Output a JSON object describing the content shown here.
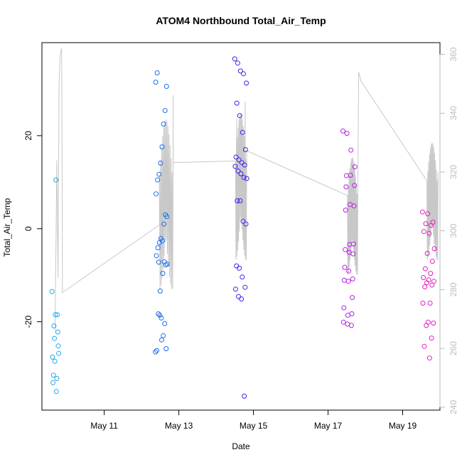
{
  "chart_data": {
    "type": "scatter",
    "title": "ATOM4 Northbound Total_Air_Temp",
    "xlabel": "Date",
    "ylabel": "Total_Air_Temp",
    "x_ticks": [
      "May 11",
      "May 13",
      "May 15",
      "May 17",
      "May 19"
    ],
    "x_tick_days": [
      11,
      13,
      15,
      17,
      19
    ],
    "xlim_days": [
      9.33,
      20.0
    ],
    "y_ticks": [
      -20,
      0,
      20
    ],
    "ylim": [
      -39,
      40
    ],
    "y_right_ticks": [
      240,
      260,
      280,
      300,
      320,
      340,
      360
    ],
    "y_right_lim": [
      239,
      364
    ],
    "colors": {
      "flight1": "#22aaee",
      "flight2": "#1a6fee",
      "flight3": "#3f22ee",
      "flight4": "#b81fe6",
      "flight5": "#e61ec7",
      "line": "#c8c8c8"
    },
    "points": [
      {
        "x": 9.69,
        "ys": [
          -13.5,
          -18.5,
          -26.8,
          -28.5,
          -25.2,
          -23.6,
          -22.2,
          -20.9,
          -18.5,
          -31.5,
          -32.2,
          -33.1,
          -35.0,
          -27.6,
          10.5
        ]
      },
      {
        "x": 12.53,
        "ys": [
          -26.5,
          -26.2,
          -18.3,
          -18.6,
          -19.2,
          -9.6,
          -7.1,
          -7.8,
          -7.6,
          -5.8,
          -4.1,
          -3.0,
          -2.1,
          -2.6,
          1.0,
          3.0,
          2.6,
          7.5,
          10.5,
          11.7,
          14.1,
          17.6,
          22.5,
          25.4,
          30.6,
          31.5,
          33.5,
          -7.2,
          -13.4,
          -23.9,
          -23.0,
          -20.4,
          -25.8
        ]
      },
      {
        "x": 14.66,
        "ys": [
          36.5,
          35.6,
          33.9,
          33.3,
          31.3,
          27.0,
          24.3,
          20.7,
          17.0,
          15.4,
          14.8,
          14.2,
          13.7,
          13.4,
          12.4,
          11.8,
          11.0,
          10.8,
          6.0,
          6.0,
          1.6,
          1.0,
          -8.0,
          -8.5,
          -10.4,
          -12.6,
          -13.0,
          -14.6,
          -15.1,
          -36.0
        ]
      },
      {
        "x": 17.56,
        "ys": [
          21.0,
          20.5,
          16.9,
          13.3,
          11.4,
          11.5,
          9.3,
          9.0,
          5.2,
          4.9,
          4.0,
          -3.4,
          -3.3,
          -4.5,
          -5.1,
          -5.4,
          -8.3,
          -9.1,
          -10.8,
          -11.1,
          -11.3,
          -14.8,
          -17.0,
          -18.6,
          -18.3,
          -20.1,
          -20.5,
          -20.8
        ]
      },
      {
        "x": 19.69,
        "ys": [
          3.6,
          3.2,
          1.4,
          1.1,
          0.7,
          -0.6,
          -1.0,
          -4.3,
          -5.3,
          -7.0,
          -8.6,
          -9.6,
          -10.5,
          -11.0,
          -11.3,
          -11.6,
          -12.1,
          -12.5,
          -16.0,
          -16.0,
          -20.1,
          -20.3,
          -20.8,
          -23.5,
          -25.3,
          -27.8
        ]
      }
    ],
    "line_right_axis": {
      "anchors": [
        [
          9.68,
          266
        ],
        [
          9.73,
          324
        ],
        [
          9.76,
          284
        ],
        [
          9.79,
          350
        ],
        [
          9.82,
          360
        ],
        [
          9.86,
          362
        ],
        [
          9.88,
          279
        ],
        [
          12.48,
          302
        ],
        [
          12.85,
          346
        ],
        [
          14.55,
          338
        ],
        [
          14.78,
          344
        ],
        [
          17.58,
          321
        ],
        [
          17.82,
          354
        ],
        [
          17.88,
          351
        ],
        [
          19.68,
          316
        ],
        [
          19.8,
          312
        ],
        [
          19.93,
          306
        ]
      ],
      "oscillation_bands": [
        {
          "x0": 12.48,
          "x1": 12.85,
          "low": 280,
          "high": 338
        },
        {
          "x0": 14.52,
          "x1": 14.82,
          "low": 290,
          "high": 340
        },
        {
          "x0": 17.52,
          "x1": 17.8,
          "low": 285,
          "high": 325
        },
        {
          "x0": 19.65,
          "x1": 19.95,
          "low": 290,
          "high": 330
        }
      ]
    }
  }
}
